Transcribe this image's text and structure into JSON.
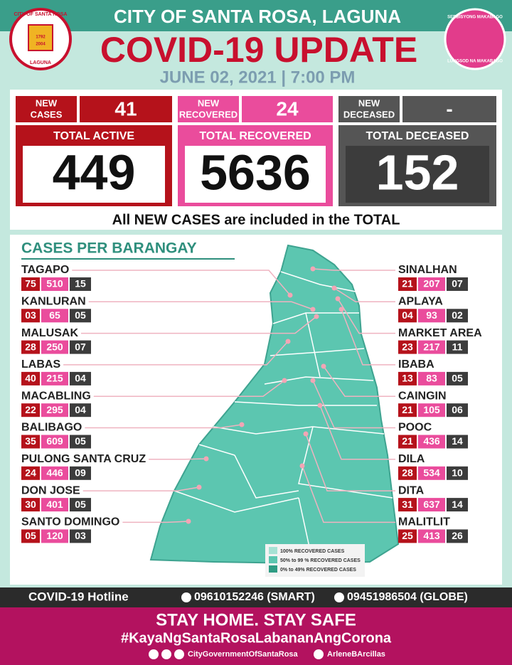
{
  "header": {
    "city": "CITY OF SANTA ROSA, LAGUNA",
    "title": "COVID-19 UPDATE",
    "date": "JUNE 02, 2021 | 7:00 PM"
  },
  "logos": {
    "left": [
      "CITY OF SANTA ROSA",
      "LAGUNA",
      "1792",
      "2004"
    ],
    "right": [
      "SERBISYONG MAKABAGO",
      "LUNGSOD NA MAKABAGO"
    ]
  },
  "summary": {
    "new": [
      {
        "label": [
          "NEW",
          "CASES"
        ],
        "value": "41"
      },
      {
        "label": [
          "NEW",
          "RECOVERED"
        ],
        "value": "24"
      },
      {
        "label": [
          "NEW",
          "DECEASED"
        ],
        "value": "-"
      }
    ],
    "totals": [
      {
        "label": "TOTAL ACTIVE",
        "value": "449"
      },
      {
        "label": "TOTAL RECOVERED",
        "value": "5636"
      },
      {
        "label": "TOTAL DECEASED",
        "value": "152"
      }
    ],
    "note": "All NEW CASES are included in the TOTAL"
  },
  "barangays": {
    "title": "CASES PER BARANGAY",
    "left": [
      {
        "name": "TAGAPO",
        "active": "75",
        "recovered": "510",
        "deceased": "15"
      },
      {
        "name": "KANLURAN",
        "active": "03",
        "recovered": "65",
        "deceased": "05"
      },
      {
        "name": "MALUSAK",
        "active": "28",
        "recovered": "250",
        "deceased": "07"
      },
      {
        "name": "LABAS",
        "active": "40",
        "recovered": "215",
        "deceased": "04"
      },
      {
        "name": "MACABLING",
        "active": "22",
        "recovered": "295",
        "deceased": "04"
      },
      {
        "name": "BALIBAGO",
        "active": "35",
        "recovered": "609",
        "deceased": "05"
      },
      {
        "name": "PULONG SANTA CRUZ",
        "active": "24",
        "recovered": "446",
        "deceased": "09"
      },
      {
        "name": "DON JOSE",
        "active": "30",
        "recovered": "401",
        "deceased": "05"
      },
      {
        "name": "SANTO DOMINGO",
        "active": "05",
        "recovered": "120",
        "deceased": "03"
      }
    ],
    "right": [
      {
        "name": "SINALHAN",
        "active": "21",
        "recovered": "207",
        "deceased": "07"
      },
      {
        "name": "APLAYA",
        "active": "04",
        "recovered": "93",
        "deceased": "02"
      },
      {
        "name": "MARKET AREA",
        "active": "23",
        "recovered": "217",
        "deceased": "11"
      },
      {
        "name": "IBABA",
        "active": "13",
        "recovered": "83",
        "deceased": "05"
      },
      {
        "name": "CAINGIN",
        "active": "21",
        "recovered": "105",
        "deceased": "06"
      },
      {
        "name": "POOC",
        "active": "21",
        "recovered": "436",
        "deceased": "14"
      },
      {
        "name": "DILA",
        "active": "28",
        "recovered": "534",
        "deceased": "10"
      },
      {
        "name": "DITA",
        "active": "31",
        "recovered": "637",
        "deceased": "14"
      },
      {
        "name": "MALITLIT",
        "active": "25",
        "recovered": "413",
        "deceased": "26"
      }
    ]
  },
  "legend": [
    "100% RECOVERED CASES",
    "50% to 99 % RECOVERED CASES",
    "0% to 49% RECOVERED CASES"
  ],
  "footer": {
    "hotline_label": "COVID-19 Hotline",
    "phones": [
      "09610152246 (SMART)",
      "09451986504 (GLOBE)"
    ],
    "slogan": "STAY HOME. STAY SAFE",
    "hashtag": "#KayaNgSantaRosaLabananAngCorona",
    "socials": [
      "CityGovernmentOfSantaRosa",
      "ArleneBArcillas"
    ]
  }
}
